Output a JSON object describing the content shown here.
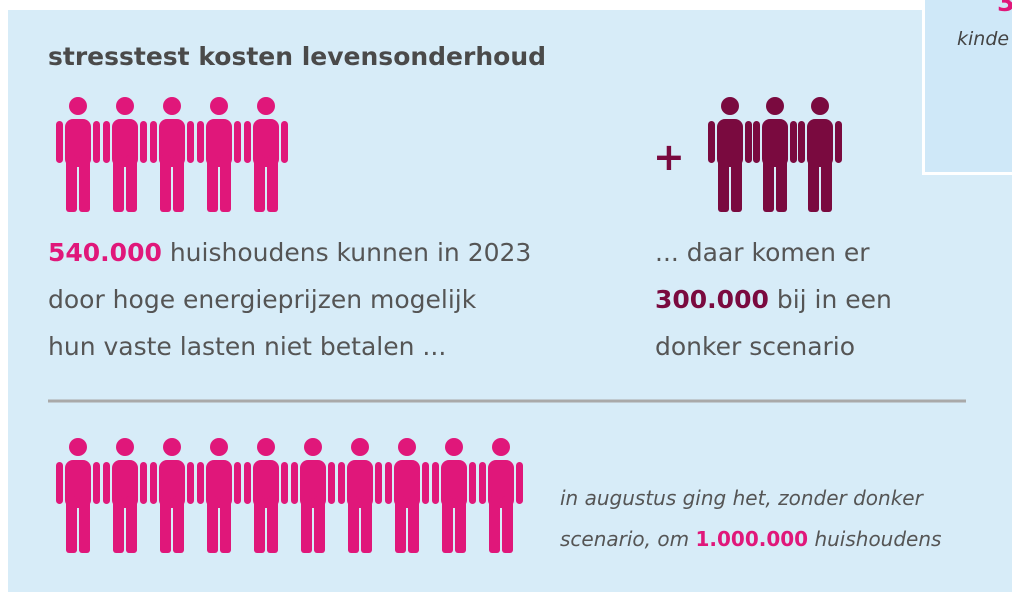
{
  "title": "stresstest kosten levensonderhoud",
  "left": {
    "highlight": "540.000",
    "lines": [
      "huishoudens kunnen in 2023",
      "door hoge energieprijzen mogelijk",
      "hun vaste lasten niet betalen ..."
    ]
  },
  "right": {
    "plus": "+",
    "line1": "... daar komen er",
    "highlight": "300.000",
    "line2": "bij in een",
    "line3": "donker scenario"
  },
  "bottom": {
    "line1": "in augustus ging het, zonder donker",
    "prefix": "scenario, om",
    "highlight": "1.000.000",
    "suffix": "huishoudens"
  },
  "corner": {
    "number": "3",
    "text": "kinde"
  }
}
